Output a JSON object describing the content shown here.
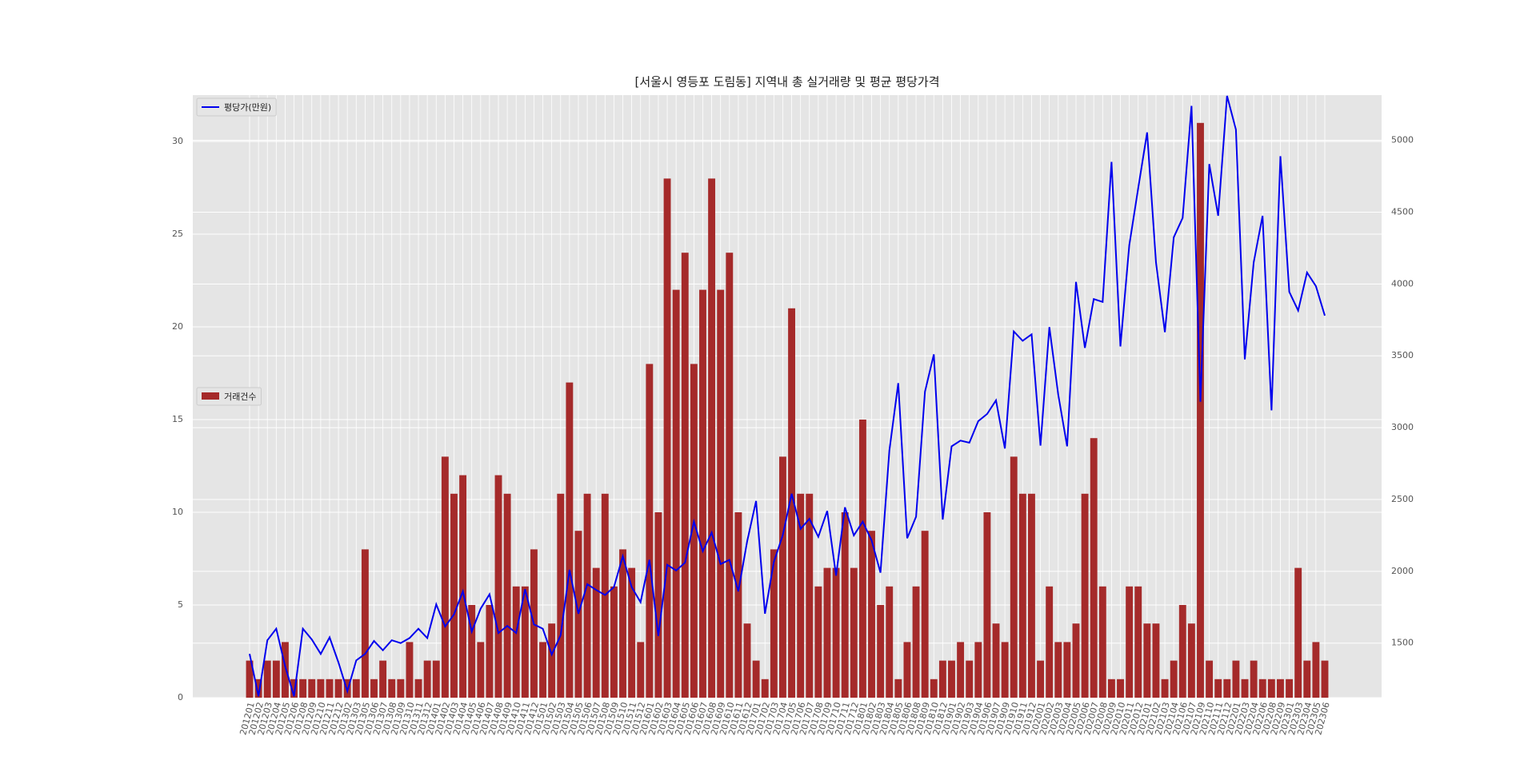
{
  "chart_data": {
    "type": "bar",
    "title": "[서울시 영등포 도림동] 지역내 총 실거래량 및 평균 평당가격",
    "categories": [
      "201201",
      "201202",
      "201203",
      "201204",
      "201205",
      "201206",
      "201208",
      "201209",
      "201210",
      "201211",
      "201212",
      "201302",
      "201303",
      "201305",
      "201306",
      "201307",
      "201308",
      "201309",
      "201310",
      "201311",
      "201312",
      "201401",
      "201402",
      "201403",
      "201404",
      "201405",
      "201406",
      "201407",
      "201408",
      "201409",
      "201410",
      "201411",
      "201412",
      "201501",
      "201502",
      "201503",
      "201504",
      "201505",
      "201506",
      "201507",
      "201508",
      "201509",
      "201510",
      "201511",
      "201512",
      "201601",
      "201602",
      "201603",
      "201604",
      "201605",
      "201606",
      "201607",
      "201608",
      "201609",
      "201610",
      "201611",
      "201612",
      "201701",
      "201702",
      "201703",
      "201704",
      "201705",
      "201706",
      "201707",
      "201708",
      "201709",
      "201710",
      "201711",
      "201712",
      "201801",
      "201802",
      "201803",
      "201804",
      "201805",
      "201806",
      "201808",
      "201809",
      "201810",
      "201812",
      "201901",
      "201902",
      "201903",
      "201904",
      "201906",
      "201907",
      "201909",
      "201910",
      "201911",
      "201912",
      "202001",
      "202002",
      "202003",
      "202004",
      "202005",
      "202006",
      "202007",
      "202008",
      "202009",
      "202010",
      "202011",
      "202012",
      "202101",
      "202102",
      "202103",
      "202104",
      "202106",
      "202107",
      "202109",
      "202110",
      "202111",
      "202112",
      "202201",
      "202203",
      "202204",
      "202206",
      "202208",
      "202209",
      "202301",
      "202303",
      "202304",
      "202305",
      "202306"
    ],
    "series": [
      {
        "name": "거래건수",
        "type": "bar",
        "color": "#a52a2a",
        "legend": "center left",
        "values": [
          2,
          1,
          2,
          2,
          3,
          1,
          1,
          1,
          1,
          1,
          1,
          1,
          1,
          8,
          1,
          2,
          1,
          1,
          3,
          1,
          2,
          2,
          13,
          11,
          12,
          5,
          3,
          5,
          12,
          11,
          6,
          6,
          8,
          3,
          4,
          11,
          17,
          9,
          11,
          7,
          11,
          6,
          8,
          7,
          3,
          18,
          10,
          28,
          22,
          24,
          18,
          22,
          28,
          22,
          24,
          10,
          4,
          2,
          1,
          8,
          13,
          21,
          11,
          11,
          6,
          7,
          7,
          10,
          7,
          15,
          9,
          5,
          6,
          1,
          3,
          6,
          9,
          1,
          2,
          2,
          3,
          2,
          3,
          10,
          4,
          3,
          13,
          11,
          11,
          2,
          6,
          3,
          3,
          4,
          11,
          14,
          6,
          1,
          1,
          6,
          6,
          4,
          4,
          1,
          2,
          5,
          4,
          31,
          2,
          1,
          1,
          2,
          1,
          2,
          1,
          1,
          1,
          1,
          7,
          2,
          3,
          2
        ]
      },
      {
        "name": "평당가(만원)",
        "type": "line",
        "axis": "y2",
        "color": "#0000ee",
        "legend": "upper left",
        "values": [
          1425,
          1130,
          1520,
          1600,
          1340,
          1130,
          1600,
          1525,
          1425,
          1540,
          1365,
          1165,
          1380,
          1425,
          1515,
          1450,
          1520,
          1500,
          1535,
          1600,
          1535,
          1770,
          1615,
          1700,
          1860,
          1580,
          1740,
          1840,
          1570,
          1620,
          1570,
          1875,
          1630,
          1600,
          1420,
          1555,
          2010,
          1705,
          1910,
          1870,
          1835,
          1890,
          2105,
          1890,
          1785,
          2080,
          1550,
          2045,
          2005,
          2060,
          2345,
          2140,
          2270,
          2050,
          2080,
          1860,
          2210,
          2490,
          1705,
          2065,
          2250,
          2540,
          2295,
          2365,
          2240,
          2420,
          1970,
          2445,
          2250,
          2345,
          2215,
          1990,
          2840,
          3310,
          2230,
          2380,
          3250,
          3510,
          2360,
          2870,
          2910,
          2895,
          3045,
          3095,
          3190,
          2855,
          3670,
          3605,
          3650,
          2875,
          3700,
          3230,
          2870,
          4015,
          3555,
          3895,
          3875,
          4850,
          3565,
          4270,
          4665,
          5055,
          4150,
          3665,
          4325,
          4460,
          5240,
          3180,
          4835,
          4475,
          5310,
          5075,
          3475,
          4150,
          4475,
          3120,
          4890,
          3945,
          3815,
          4080,
          3985,
          3780
        ]
      }
    ],
    "ylim": [
      0,
      32.5
    ],
    "yticks": [
      0,
      5,
      10,
      15,
      20,
      25,
      30
    ],
    "y2lim": [
      1120,
      5315
    ],
    "y2ticks": [
      1500,
      2000,
      2500,
      3000,
      3500,
      4000,
      4500,
      5000
    ],
    "grid": true
  }
}
